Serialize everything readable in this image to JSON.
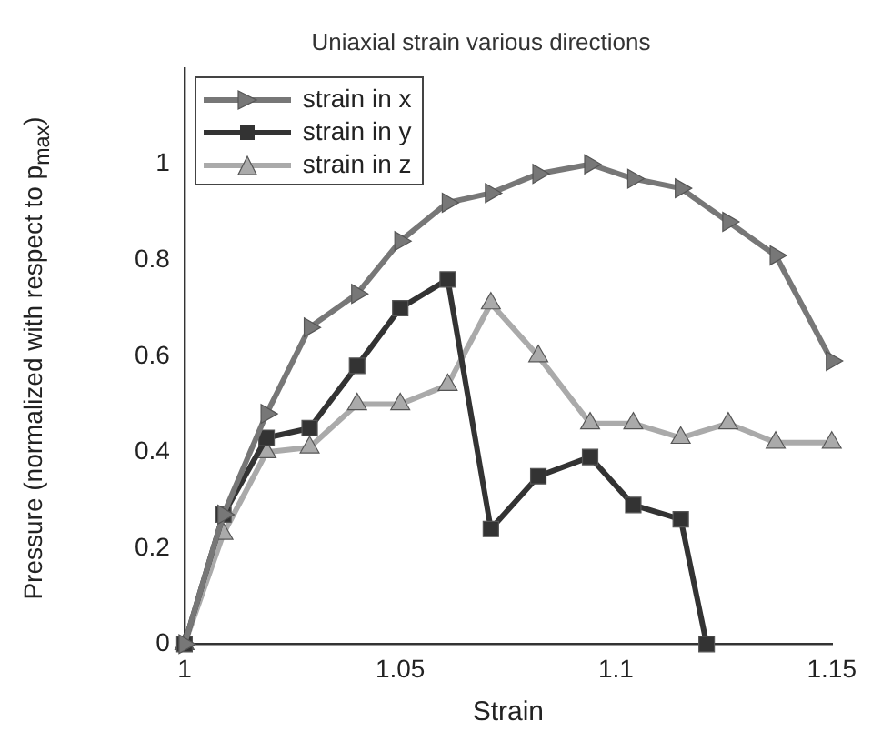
{
  "chart_data": {
    "type": "line",
    "title": "Uniaxial strain various directions",
    "xlabel": "Strain",
    "ylabel": "Pressure (normalized with respect to p$_{max}$)",
    "xlim": [
      1,
      1.15
    ],
    "xticks": [
      1,
      1.05,
      1.1,
      1.15
    ],
    "ylim": [
      0,
      1.2
    ],
    "yticks": [
      0,
      0.2,
      0.4,
      0.6,
      0.8,
      1
    ],
    "legend": "top left",
    "grid": false,
    "line_style": "solid",
    "series": [
      {
        "name": "strain in x",
        "color": "#777777",
        "marker": "triangle",
        "x": [
          1,
          1.009,
          1.019,
          1.029,
          1.04,
          1.05,
          1.061,
          1.071,
          1.082,
          1.094,
          1.104,
          1.115,
          1.126,
          1.137,
          1.15
        ],
        "values": [
          0,
          0.27,
          0.48,
          0.66,
          0.73,
          0.84,
          0.92,
          0.94,
          0.98,
          1.0,
          0.97,
          0.95,
          0.88,
          0.81,
          0.59
        ]
      },
      {
        "name": "strain in y",
        "color": "#333333",
        "marker": "square",
        "x": [
          1,
          1.009,
          1.019,
          1.029,
          1.04,
          1.05,
          1.061,
          1.071,
          1.082,
          1.094,
          1.104,
          1.115,
          1.121
        ],
        "values": [
          0,
          0.27,
          0.43,
          0.45,
          0.58,
          0.7,
          0.76,
          0.24,
          0.35,
          0.39,
          0.29,
          0.26,
          0
        ]
      },
      {
        "name": "strain in z",
        "color": "#aaaaaa",
        "marker": "triangle",
        "x": [
          1,
          1.009,
          1.019,
          1.029,
          1.04,
          1.05,
          1.061,
          1.071,
          1.082,
          1.094,
          1.104,
          1.115,
          1.126,
          1.137,
          1.15
        ],
        "values": [
          0,
          0.23,
          0.4,
          0.41,
          0.5,
          0.5,
          0.54,
          0.71,
          0.6,
          0.46,
          0.46,
          0.43,
          0.46,
          0.42,
          0.42
        ]
      }
    ]
  }
}
